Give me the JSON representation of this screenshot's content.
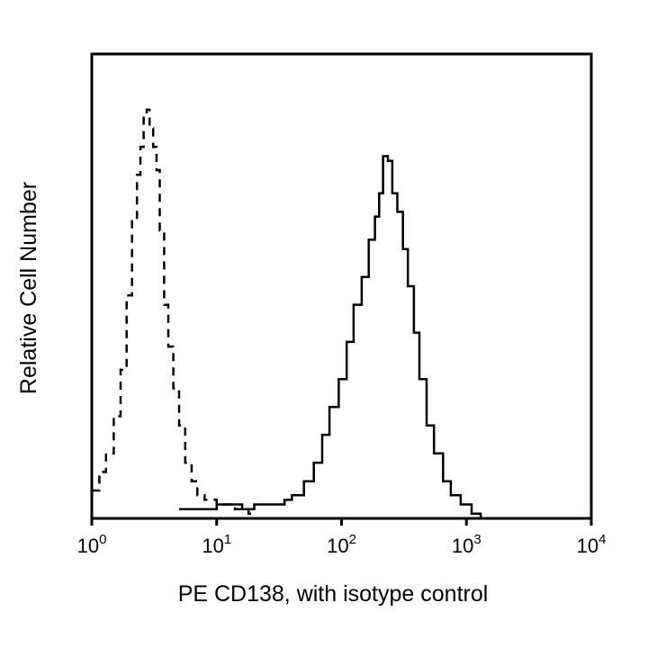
{
  "chart_data": {
    "type": "line",
    "xlabel": "PE CD138, with isotype control",
    "ylabel": "Relative Cell Number",
    "x_scale": "log",
    "xlim": [
      1,
      10000
    ],
    "ylim": [
      0,
      100
    ],
    "grid": false,
    "x_ticks": [
      {
        "base": "10",
        "exp": "0"
      },
      {
        "base": "10",
        "exp": "1"
      },
      {
        "base": "10",
        "exp": "2"
      },
      {
        "base": "10",
        "exp": "3"
      },
      {
        "base": "10",
        "exp": "4"
      }
    ],
    "series": [
      {
        "style": "dashed",
        "color": "#000000",
        "x": [
          1,
          1.15,
          1.3,
          1.5,
          1.7,
          1.9,
          2.1,
          2.3,
          2.45,
          2.6,
          2.75,
          2.9,
          3.1,
          3.3,
          3.5,
          3.8,
          4.1,
          4.5,
          5,
          5.6,
          6.3,
          7,
          8,
          9,
          10,
          11,
          12.5,
          14,
          16,
          18,
          20
        ],
        "y": [
          6,
          10,
          14,
          22,
          32,
          48,
          64,
          74,
          80,
          87,
          88,
          84,
          80,
          75,
          62,
          46,
          37,
          28,
          20,
          12,
          8,
          5,
          4,
          4,
          3,
          3,
          3,
          2,
          2,
          1,
          1
        ]
      },
      {
        "style": "solid",
        "color": "#000000",
        "x": [
          5,
          7,
          10,
          13,
          16,
          20,
          25,
          30,
          35,
          40,
          50,
          60,
          70,
          80,
          95,
          110,
          125,
          145,
          165,
          185,
          200,
          215,
          235,
          255,
          280,
          310,
          340,
          380,
          420,
          480,
          550,
          650,
          750,
          900,
          1100,
          1300
        ],
        "y": [
          2,
          2,
          3,
          3,
          2,
          3,
          3,
          3,
          4,
          5,
          8,
          12,
          18,
          24,
          30,
          38,
          46,
          52,
          60,
          65,
          70,
          78,
          77,
          70,
          66,
          58,
          50,
          40,
          30,
          20,
          14,
          8,
          5,
          3,
          1,
          0
        ]
      }
    ]
  }
}
